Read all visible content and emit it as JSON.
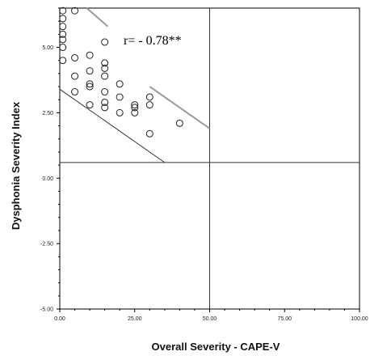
{
  "chart_data": {
    "type": "scatter",
    "title": "",
    "xlabel": "Overall Severity - CAPE-V",
    "ylabel": "Dysphonia Severity Index",
    "xlim": [
      0,
      100
    ],
    "ylim": [
      -5.0,
      6.5
    ],
    "x_ticks": [
      0,
      25,
      50,
      75,
      100
    ],
    "x_tick_labels": [
      "0.00",
      "25.00",
      "50.00",
      "75.00",
      "100.00"
    ],
    "y_ticks": [
      -5.0,
      -2.5,
      0.0,
      2.5,
      5.0
    ],
    "y_tick_labels": [
      "-5.00",
      "-2.50",
      "0.00",
      "2.50",
      "5.00"
    ],
    "annotation": "r= - 0.78**",
    "reference_lines": {
      "x": 50,
      "y": 0.6
    },
    "points": [
      {
        "x": 1,
        "y": 6.4
      },
      {
        "x": 1,
        "y": 6.1
      },
      {
        "x": 1,
        "y": 5.8
      },
      {
        "x": 1,
        "y": 5.5
      },
      {
        "x": 1,
        "y": 5.3
      },
      {
        "x": 1,
        "y": 5.0
      },
      {
        "x": 1,
        "y": 4.5
      },
      {
        "x": 5,
        "y": 6.4
      },
      {
        "x": 5,
        "y": 4.6
      },
      {
        "x": 5,
        "y": 3.9
      },
      {
        "x": 5,
        "y": 3.3
      },
      {
        "x": 10,
        "y": 4.7
      },
      {
        "x": 10,
        "y": 4.1
      },
      {
        "x": 10,
        "y": 3.6
      },
      {
        "x": 10,
        "y": 3.5
      },
      {
        "x": 10,
        "y": 2.8
      },
      {
        "x": 15,
        "y": 5.2
      },
      {
        "x": 15,
        "y": 4.4
      },
      {
        "x": 15,
        "y": 4.2
      },
      {
        "x": 15,
        "y": 3.9
      },
      {
        "x": 15,
        "y": 3.3
      },
      {
        "x": 15,
        "y": 2.9
      },
      {
        "x": 15,
        "y": 2.7
      },
      {
        "x": 20,
        "y": 3.6
      },
      {
        "x": 20,
        "y": 3.1
      },
      {
        "x": 20,
        "y": 2.5
      },
      {
        "x": 25,
        "y": 2.8
      },
      {
        "x": 25,
        "y": 2.7
      },
      {
        "x": 25,
        "y": 2.5
      },
      {
        "x": 30,
        "y": 3.1
      },
      {
        "x": 30,
        "y": 2.8
      },
      {
        "x": 30,
        "y": 1.7
      },
      {
        "x": 40,
        "y": 2.1
      }
    ],
    "lines": [
      {
        "x": [
          0,
          35
        ],
        "y": [
          3.4,
          0.6
        ]
      },
      {
        "x": [
          9,
          16
        ],
        "y": [
          6.5,
          5.8
        ]
      },
      {
        "x": [
          30,
          50
        ],
        "y": [
          3.5,
          1.9
        ]
      }
    ],
    "grid": false,
    "legend": "none"
  }
}
